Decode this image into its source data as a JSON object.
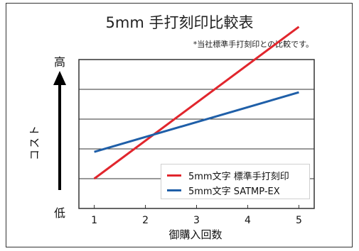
{
  "chart_data": {
    "type": "line",
    "title": "5mm 手打刻印比較表",
    "note": "*当社標準手打刻印との比較です。",
    "xlabel": "御購入回数",
    "ylabel": "コスト",
    "y_high_label": "高",
    "y_low_label": "低",
    "x": [
      1,
      2,
      3,
      4,
      5
    ],
    "xlim": [
      0.7,
      5.3
    ],
    "ylim": [
      0,
      5
    ],
    "grid": "horizontal",
    "legend_position": "bottom-right",
    "series": [
      {
        "name": "5mm文字 標準手打刻印",
        "color": "#e1262d",
        "values": [
          1.0,
          2.3,
          3.7,
          4.9,
          6.1
        ]
      },
      {
        "name": "5mm文字 SATMP-EX",
        "color": "#1f5fa8",
        "values": [
          1.9,
          2.3,
          2.9,
          3.3,
          3.9
        ]
      }
    ]
  }
}
